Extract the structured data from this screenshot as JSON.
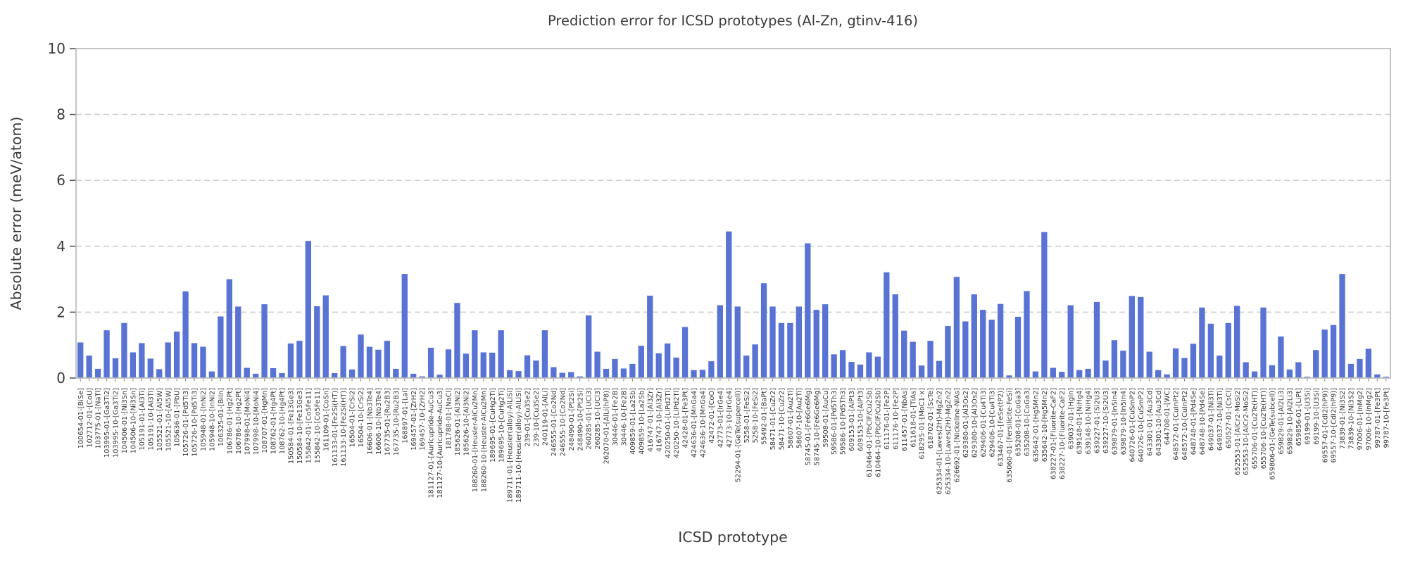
{
  "figure": {
    "title": "Prediction error for ICSD prototypes (Al-Zn, gtinv-416)",
    "xlabel": "ICSD prototype",
    "ylabel": "Absolute error (meV/atom)"
  },
  "chart_data": {
    "type": "bar",
    "title": "Prediction error for ICSD prototypes (Al-Zn, gtinv-416)",
    "xlabel": "ICSD prototype",
    "ylabel": "Absolute error (meV/atom)",
    "ylim": [
      0,
      10
    ],
    "yticks": [
      0,
      2,
      4,
      6,
      8,
      10
    ],
    "grid": "horizontal dashed gridlines at 2,4,6,8",
    "legend": "none",
    "bar_color": "#5873d4",
    "categories": [
      "100654-01-[BiSe]",
      "102712-01-[CoU]",
      "103775-01-[NaTl]",
      "103995-01-[Ga3Ti2]",
      "103995-10-[Ga3Ti2]",
      "104506-01-[Ni3Sn]",
      "104506-10-[Ni3Sn]",
      "105191-01-[Al3Ti]",
      "105191-10-[Al3Ti]",
      "105521-01-[Al5W]",
      "105521-10-[Al5W]",
      "105636-01-[PbU]",
      "105726-01-[Pd5Ti3]",
      "105726-10-[Pd5Ti3]",
      "105948-01-[InNi2]",
      "105948-10-[InNi2]",
      "106325-01-[BiIn]",
      "106786-01-[Hg2Pt]",
      "106786-10-[Hg2Pt]",
      "107998-01-[MoNi4]",
      "107998-10-[MoNi4]",
      "108707-01-[HgMn]",
      "108762-01-[Hg4Pt]",
      "108762-10-[Hg4Pt]",
      "150584-01-[Fe13Ge3]",
      "150584-10-[Fe13Ge3]",
      "155842-01-[Co5Fe11]",
      "155842-10-[Co5Fe11]",
      "161109-01-[CoSn]",
      "161133-01-[Fe2Si(HT)]",
      "161133-10-[Fe2Si(HT)]",
      "16504-01-[CrSi2]",
      "16504-10-[CrSi2]",
      "16606-01-[Nb3Te4]",
      "16606-10-[Nb3Te4]",
      "167735-01-[Ru2B3]",
      "167735-10-[Ru2B3]",
      "168897-01-[LaI]",
      "169457-01-[ZrH2]",
      "169457-10-[ZrH2]",
      "181127-01-[Auricupride-AuCu3]",
      "181127-10-[Auricupride-AuCu3]",
      "181788-01-[NaCl]",
      "185626-01-[Al3Ni2]",
      "185626-10-[Al3Ni2]",
      "188260-01-[Heusler-AlCu2Mn]",
      "188260-10-[Heusler-AlCu2Mn]",
      "189695-01-[CuHg2Ti]",
      "189695-10-[CuHg2Ti]",
      "189711-01-[Heusler(alloy)-AlLiSi]",
      "189711-10-[Heusler(alloy)-AlLiSi]",
      "239-01-[Cu3Se2]",
      "239-10-[Cu3Se2]",
      "240119-01-[AlLi]",
      "246555-01-[Co2Nd]",
      "246555-10-[Co2Nd]",
      "248490-01-[Pt2Si]",
      "248490-10-[Pt2Si]",
      "260285-01-[UCl3]",
      "260285-10-[UCl3]",
      "262070-01-[AlLi(hP8)]",
      "30446-01-[Fe2B]",
      "30446-10-[Fe2B]",
      "409859-01-[La2Sb]",
      "409859-10-[La2Sb]",
      "416747-01-[Al3Zr]",
      "416747-10-[Al3Zr]",
      "420250-01-[LiPd2Tl]",
      "420250-10-[LiPd2Tl]",
      "42428-01-[Fe3Pt]",
      "424636-01-[MnGa4]",
      "424636-10-[MnGa4]",
      "42472-01-[CoO]",
      "42773-01-[IrGe4]",
      "42773-10-[IrGe4]",
      "52294-01-[GeTe(supercell)]",
      "5258-01-[FeSi2]",
      "5258-10-[FeSi2]",
      "55492-01-[BaPt]",
      "58471-01-[CuZr2]",
      "58471-10-[CuZr2]",
      "58607-01-[Au2Ti]",
      "58607-10-[Au2Ti]",
      "58745-01-[Fe6Ge6Mg]",
      "58745-10-[Fe6Ge6Mg]",
      "59508-01-[AuCu]",
      "59586-01-[Pd5Th3]",
      "59586-10-[Pd5Th3]",
      "609153-01-[AlPt3]",
      "609153-10-[AlPt3]",
      "610464-01-[PbClF/Cu2Sb]",
      "610464-10-[PbClF/Cu2Sb]",
      "611176-01-[Fe2P]",
      "611176-10-[Fe2P]",
      "611457-01-[NbAs]",
      "611618-01-[TiAs]",
      "618295-01-[MoC1-x]",
      "618702-01-[ScTe]",
      "625334-01-[Laves(2H)-MgZn2]",
      "625334-10-[Laves(2H)-MgZn2]",
      "626692-01-[Nickeline-NiAs]",
      "629380-01-[Al3Os2]",
      "629380-10-[Al3Os2]",
      "629406-01-[Cu4Ti3]",
      "629406-10-[Cu4Ti3]",
      "633467-01-[FeSe(tP2)]",
      "635060-01-[Fersilicite-FeSi]",
      "635208-01-[CoGa3]",
      "635208-10-[CoGa3]",
      "635642-01-[Hg5Mn2]",
      "635642-10-[Hg5Mn2]",
      "638227-01-[Fluorite-CaF2]",
      "638227-10-[Fluorite-CaF2]",
      "639037-01-[HgIn]",
      "639148-01-[NiHg4]",
      "639148-10-[NiHg4]",
      "639227-01-[Si2U3]",
      "639227-10-[Si2U3]",
      "639879-01-[In5In4]",
      "639879-10-[In5In4]",
      "640726-01-[CuSmP2]",
      "640726-10-[CuSmP2]",
      "643301-01-[Au3Cd]",
      "643301-10-[Au3Cd]",
      "644708-01-[WC]",
      "648572-01-[CuInPt2]",
      "648572-10-[CuInPt2]",
      "648748-01-[Pd4Se]",
      "648748-10-[Pd4Se]",
      "649037-01-[Ni3Ti]",
      "649037-10-[Ni3Ti]",
      "650527-01-[CsCl]",
      "652553-01-[AlCr2-MoSi2]",
      "652553-10-[AlCr2-MoSi2]",
      "655706-01-[Cu2Te(HT)]",
      "655706-10-[Cu2Te(HT)]",
      "659806-01-[GeTe(subcell)]",
      "659829-01-[Al2Li3]",
      "659829-10-[Al2Li3]",
      "659856-01-[LiPt]",
      "69199-01-[U3Si]",
      "69199-10-[U3Si]",
      "69557-01-[CdI2(hP9)]",
      "69557-10-[CdI2(hP9)]",
      "73839-01-[Ni3S2]",
      "73839-10-[Ni3S2]",
      "97006-01-[InMg2]",
      "97006-10-[InMg2]",
      "99787-01-[Fe3Pt]",
      "99787-10-[Fe3Pt]"
    ],
    "values": [
      1.08,
      0.68,
      0.28,
      1.45,
      0.6,
      1.67,
      0.78,
      1.06,
      0.59,
      0.27,
      1.08,
      1.41,
      2.63,
      1.06,
      0.95,
      0.2,
      1.87,
      3.0,
      2.17,
      0.31,
      0.13,
      2.24,
      0.3,
      0.15,
      1.05,
      1.13,
      4.16,
      2.18,
      2.51,
      0.15,
      0.97,
      0.26,
      1.32,
      0.95,
      0.86,
      1.13,
      0.28,
      3.16,
      0.13,
      0.05,
      0.92,
      0.1,
      0.87,
      2.28,
      0.74,
      1.45,
      0.78,
      0.77,
      1.45,
      0.24,
      0.21,
      0.69,
      0.53,
      1.45,
      0.33,
      0.16,
      0.18,
      0.05,
      1.9,
      0.8,
      0.28,
      0.58,
      0.29,
      0.43,
      0.98,
      2.5,
      0.75,
      1.05,
      0.62,
      1.55,
      0.24,
      0.25,
      0.51,
      2.21,
      4.45,
      2.17,
      0.68,
      1.02,
      2.88,
      2.17,
      1.67,
      1.67,
      2.17,
      4.09,
      2.07,
      2.24,
      0.72,
      0.85,
      0.49,
      0.41,
      0.78,
      0.65,
      3.21,
      2.54,
      1.44,
      1.1,
      0.38,
      1.13,
      0.52,
      1.58,
      3.07,
      1.72,
      2.54,
      2.07,
      1.77,
      2.25,
      0.08,
      1.86,
      2.64,
      0.2,
      4.43,
      0.31,
      0.19,
      2.21,
      0.24,
      0.28,
      2.31,
      0.53,
      1.15,
      0.83,
      2.49,
      2.46,
      0.8,
      0.24,
      0.11,
      0.9,
      0.61,
      1.04,
      2.14,
      1.65,
      0.68,
      1.67,
      2.19,
      0.48,
      0.2,
      2.14,
      0.39,
      1.26,
      0.26,
      0.48,
      0.04,
      0.85,
      1.47,
      1.61,
      3.16,
      0.43,
      0.58,
      0.89,
      0.11,
      0.04
    ]
  }
}
